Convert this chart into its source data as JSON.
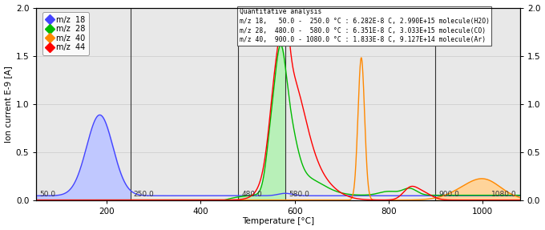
{
  "ylabel_left": "Ion current E-9 [A]",
  "xlabel": "Temperature [°C]",
  "xlim": [
    50,
    1080
  ],
  "ylim": [
    0.0,
    2.0
  ],
  "yticks": [
    0.0,
    0.5,
    1.0,
    1.5,
    2.0
  ],
  "xtick_major": [
    200,
    400,
    600,
    800,
    1000
  ],
  "vlines": [
    50.0,
    250.0,
    480.0,
    580.0,
    900.0,
    1080.0
  ],
  "vline_labels": [
    "50.0",
    "250.0",
    "480.0",
    "580.0",
    "900.0",
    "1080.0"
  ],
  "legend_entries": [
    "m/z  18",
    "m/z  28",
    "m/z  40",
    "m/z  44"
  ],
  "legend_colors": [
    "#4444ff",
    "#00bb00",
    "#ff8800",
    "#ff0000"
  ],
  "quantitative_lines": [
    "Quantitative analysis",
    "m/z 18,   50.0 -  250.0 °C : 6.282E-8 C, 2.990E+15 molecule(H2O)",
    "m/z 28,  480.0 -  580.0 °C : 6.351E-8 C, 3.033E+15 molecule(CO)",
    "m/z 40,  900.0 - 1080.0 °C : 1.833E-8 C, 9.127E+14 molecule(Ar)"
  ],
  "fill_blue_range": [
    50,
    250
  ],
  "fill_green_range": [
    480,
    580
  ],
  "fill_orange_range": [
    900,
    1080
  ],
  "fill_blue_color": "#c0c8ff",
  "fill_green_color": "#b8f0b8",
  "fill_orange_color": "#ffd49a",
  "line_color_18": "#4444ff",
  "line_color_28": "#00bb00",
  "line_color_40": "#ff8800",
  "line_color_44": "#ff0000",
  "bg_color": "#e8e8e8"
}
